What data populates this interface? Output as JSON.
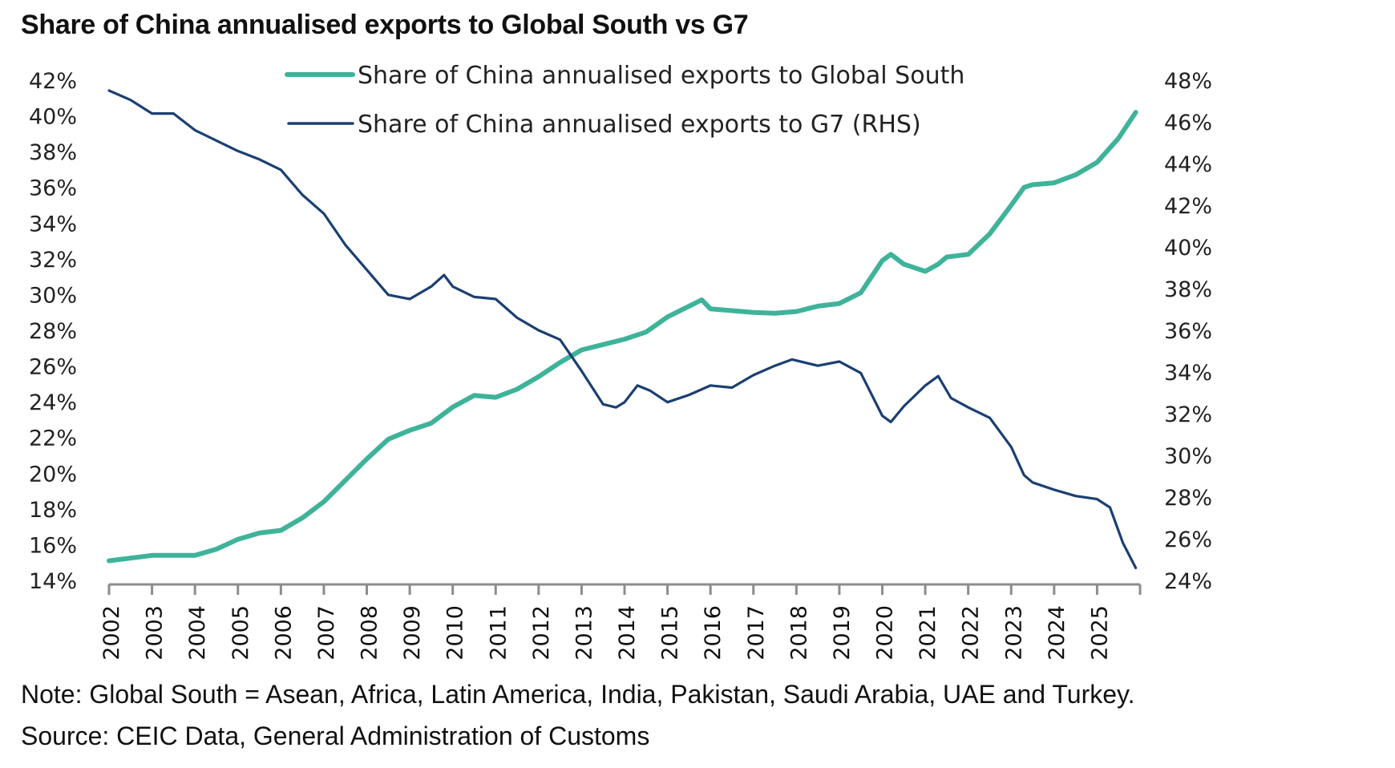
{
  "title": "Share of China annualised exports to Global South vs G7",
  "note": "Note: Global South = Asean, Africa, Latin America, India, Pakistan, Saudi Arabia, UAE and Turkey.",
  "source": "Source: CEIC Data, General Administration of Customs",
  "chart_data": {
    "type": "line",
    "title": "Share of China annualised exports to Global South vs G7",
    "xlabel": "",
    "ylabel": "",
    "x_ticks": [
      "2002",
      "2003",
      "2004",
      "2005",
      "2006",
      "2007",
      "2008",
      "2009",
      "2010",
      "2011",
      "2012",
      "2013",
      "2014",
      "2015",
      "2016",
      "2017",
      "2018",
      "2019",
      "2020",
      "2021",
      "2022",
      "2023",
      "2024",
      "2025"
    ],
    "x_range": [
      2002,
      2026
    ],
    "y_left": {
      "range": [
        14,
        42
      ],
      "ticks": [
        "42%",
        "40%",
        "38%",
        "36%",
        "34%",
        "32%",
        "30%",
        "28%",
        "26%",
        "24%",
        "22%",
        "20%",
        "18%",
        "16%",
        "14%"
      ]
    },
    "y_right": {
      "range": [
        24,
        48
      ],
      "ticks": [
        "48%",
        "46%",
        "44%",
        "42%",
        "40%",
        "38%",
        "36%",
        "34%",
        "32%",
        "30%",
        "28%",
        "26%",
        "24%"
      ]
    },
    "grid": false,
    "legend_position": "top-center",
    "series": [
      {
        "name": "Share of China annualised exports to Global South",
        "axis": "left",
        "color": "#3fb39a",
        "x": [
          2002.0,
          2003.0,
          2004.0,
          2004.5,
          2005.0,
          2005.5,
          2006.0,
          2006.5,
          2007.0,
          2007.5,
          2008.0,
          2008.5,
          2009.0,
          2009.5,
          2010.0,
          2010.5,
          2011.0,
          2011.5,
          2012.0,
          2012.5,
          2013.0,
          2013.5,
          2014.0,
          2014.5,
          2015.0,
          2015.5,
          2015.8,
          2016.0,
          2016.5,
          2017.0,
          2017.5,
          2018.0,
          2018.5,
          2019.0,
          2019.5,
          2020.0,
          2020.2,
          2020.5,
          2021.0,
          2021.3,
          2021.5,
          2022.0,
          2022.5,
          2023.0,
          2023.3,
          2023.5,
          2024.0,
          2024.5,
          2025.0,
          2025.5,
          2025.9
        ],
        "values": [
          15.1,
          15.4,
          15.4,
          15.75,
          16.3,
          16.65,
          16.8,
          17.5,
          18.4,
          19.6,
          20.8,
          21.9,
          22.4,
          22.8,
          23.7,
          24.35,
          24.25,
          24.7,
          25.4,
          26.2,
          26.9,
          27.2,
          27.5,
          27.9,
          28.75,
          29.35,
          29.7,
          29.2,
          29.1,
          29.0,
          28.95,
          29.05,
          29.35,
          29.5,
          30.1,
          31.9,
          32.25,
          31.7,
          31.3,
          31.7,
          32.1,
          32.25,
          33.4,
          35.0,
          36.0,
          36.15,
          36.25,
          36.7,
          37.4,
          38.75,
          40.2
        ]
      },
      {
        "name": "Share of China annualised exports to G7 (RHS)",
        "axis": "right",
        "color": "#1b3f72",
        "x": [
          2002.0,
          2002.5,
          2003.0,
          2003.5,
          2004.0,
          2004.5,
          2005.0,
          2005.5,
          2006.0,
          2006.5,
          2007.0,
          2007.5,
          2008.0,
          2008.5,
          2009.0,
          2009.5,
          2009.8,
          2010.0,
          2010.5,
          2011.0,
          2011.5,
          2012.0,
          2012.5,
          2013.0,
          2013.5,
          2013.8,
          2014.0,
          2014.3,
          2014.6,
          2015.0,
          2015.5,
          2016.0,
          2016.5,
          2017.0,
          2017.5,
          2017.9,
          2018.5,
          2019.0,
          2019.5,
          2020.0,
          2020.2,
          2020.5,
          2021.0,
          2021.3,
          2021.6,
          2022.0,
          2022.5,
          2023.0,
          2023.3,
          2023.5,
          2024.0,
          2024.5,
          2025.0,
          2025.3,
          2025.6,
          2025.9
        ],
        "values": [
          47.5,
          47.05,
          46.4,
          46.4,
          45.6,
          45.1,
          44.6,
          44.2,
          43.7,
          42.5,
          41.6,
          40.1,
          38.9,
          37.7,
          37.5,
          38.1,
          38.65,
          38.1,
          37.6,
          37.5,
          36.6,
          36.0,
          35.55,
          34.05,
          32.45,
          32.3,
          32.55,
          33.35,
          33.1,
          32.55,
          32.9,
          33.35,
          33.25,
          33.85,
          34.3,
          34.6,
          34.3,
          34.5,
          33.95,
          31.9,
          31.6,
          32.35,
          33.35,
          33.8,
          32.75,
          32.3,
          31.8,
          30.4,
          29.05,
          28.7,
          28.35,
          28.05,
          27.9,
          27.5,
          25.8,
          24.6
        ]
      }
    ]
  }
}
